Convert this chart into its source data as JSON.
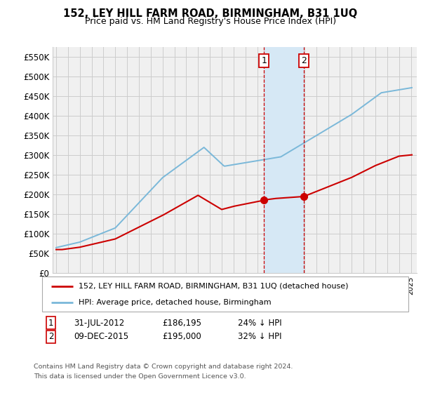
{
  "title": "152, LEY HILL FARM ROAD, BIRMINGHAM, B31 1UQ",
  "subtitle": "Price paid vs. HM Land Registry's House Price Index (HPI)",
  "ylabel_ticks": [
    "£0",
    "£50K",
    "£100K",
    "£150K",
    "£200K",
    "£250K",
    "£300K",
    "£350K",
    "£400K",
    "£450K",
    "£500K",
    "£550K"
  ],
  "ytick_vals": [
    0,
    50000,
    100000,
    150000,
    200000,
    250000,
    300000,
    350000,
    400000,
    450000,
    500000,
    550000
  ],
  "ylim": [
    0,
    575000
  ],
  "xlim_start": 1994.7,
  "xlim_end": 2025.5,
  "sale1_date": 2012.58,
  "sale1_price": 186195,
  "sale2_date": 2015.94,
  "sale2_price": 195000,
  "sale1_label": "1",
  "sale2_label": "2",
  "legend_line1": "152, LEY HILL FARM ROAD, BIRMINGHAM, B31 1UQ (detached house)",
  "legend_line2": "HPI: Average price, detached house, Birmingham",
  "row1_num": "1",
  "row1_date": "31-JUL-2012",
  "row1_price": "£186,195",
  "row1_hpi": "24% ↓ HPI",
  "row2_num": "2",
  "row2_date": "09-DEC-2015",
  "row2_price": "£195,000",
  "row2_hpi": "32% ↓ HPI",
  "footer1": "Contains HM Land Registry data © Crown copyright and database right 2024.",
  "footer2": "This data is licensed under the Open Government Licence v3.0.",
  "hpi_color": "#7ab8d9",
  "price_color": "#cc0000",
  "highlight_color": "#d6e8f5",
  "grid_color": "#cccccc",
  "bg_color": "#f0f0f0"
}
